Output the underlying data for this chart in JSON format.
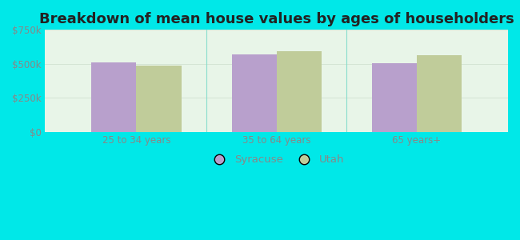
{
  "title": "Breakdown of mean house values by ages of householders",
  "categories": [
    "25 to 34 years",
    "35 to 64 years",
    "65 years+"
  ],
  "syracuse_values": [
    510000,
    570000,
    505000
  ],
  "utah_values": [
    485000,
    595000,
    565000
  ],
  "syracuse_color": "#b8a0cc",
  "utah_color": "#c0cc9a",
  "background_outer": "#00e8e8",
  "background_inner_color1": "#e8f5e8",
  "background_inner_color2": "#f5fcf5",
  "ylim": [
    0,
    750000
  ],
  "yticks": [
    0,
    250000,
    500000,
    750000
  ],
  "ytick_labels": [
    "$0",
    "$250k",
    "$500k",
    "$750k"
  ],
  "legend_labels": [
    "Syracuse",
    "Utah"
  ],
  "bar_width": 0.32,
  "title_fontsize": 13,
  "tick_fontsize": 8.5,
  "legend_fontsize": 9.5,
  "separator_color": "#88ddcc",
  "tick_color": "#888888"
}
